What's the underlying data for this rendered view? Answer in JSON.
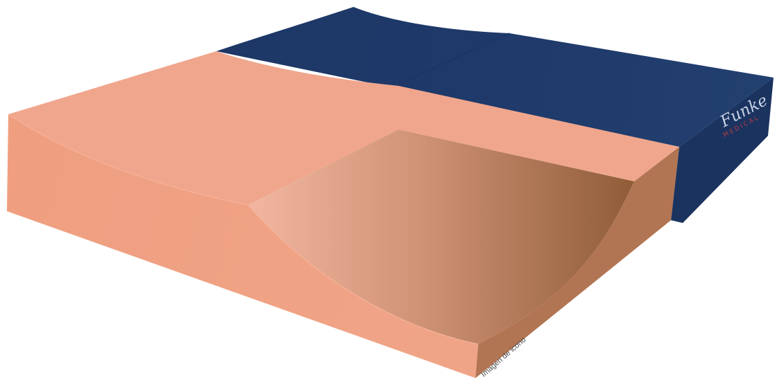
{
  "image": {
    "subject": "pressure-relief seat cushion, peach foam top with contoured well, navy cover",
    "caption": "Imagen de icono"
  },
  "brand": {
    "name": "Funke",
    "subline": "MEDICAL",
    "name_color": "#c9d3e6",
    "subline_color": "#b83a45"
  },
  "colors": {
    "foam_top": "#f0a68d",
    "foam_front": "#ee9f80",
    "foam_right_side": "#b27553",
    "cover_top": "#1f3a6b",
    "cover_side": "#1b335f",
    "well_light": "#f2b6a0",
    "well_dark": "#8f5c38"
  }
}
